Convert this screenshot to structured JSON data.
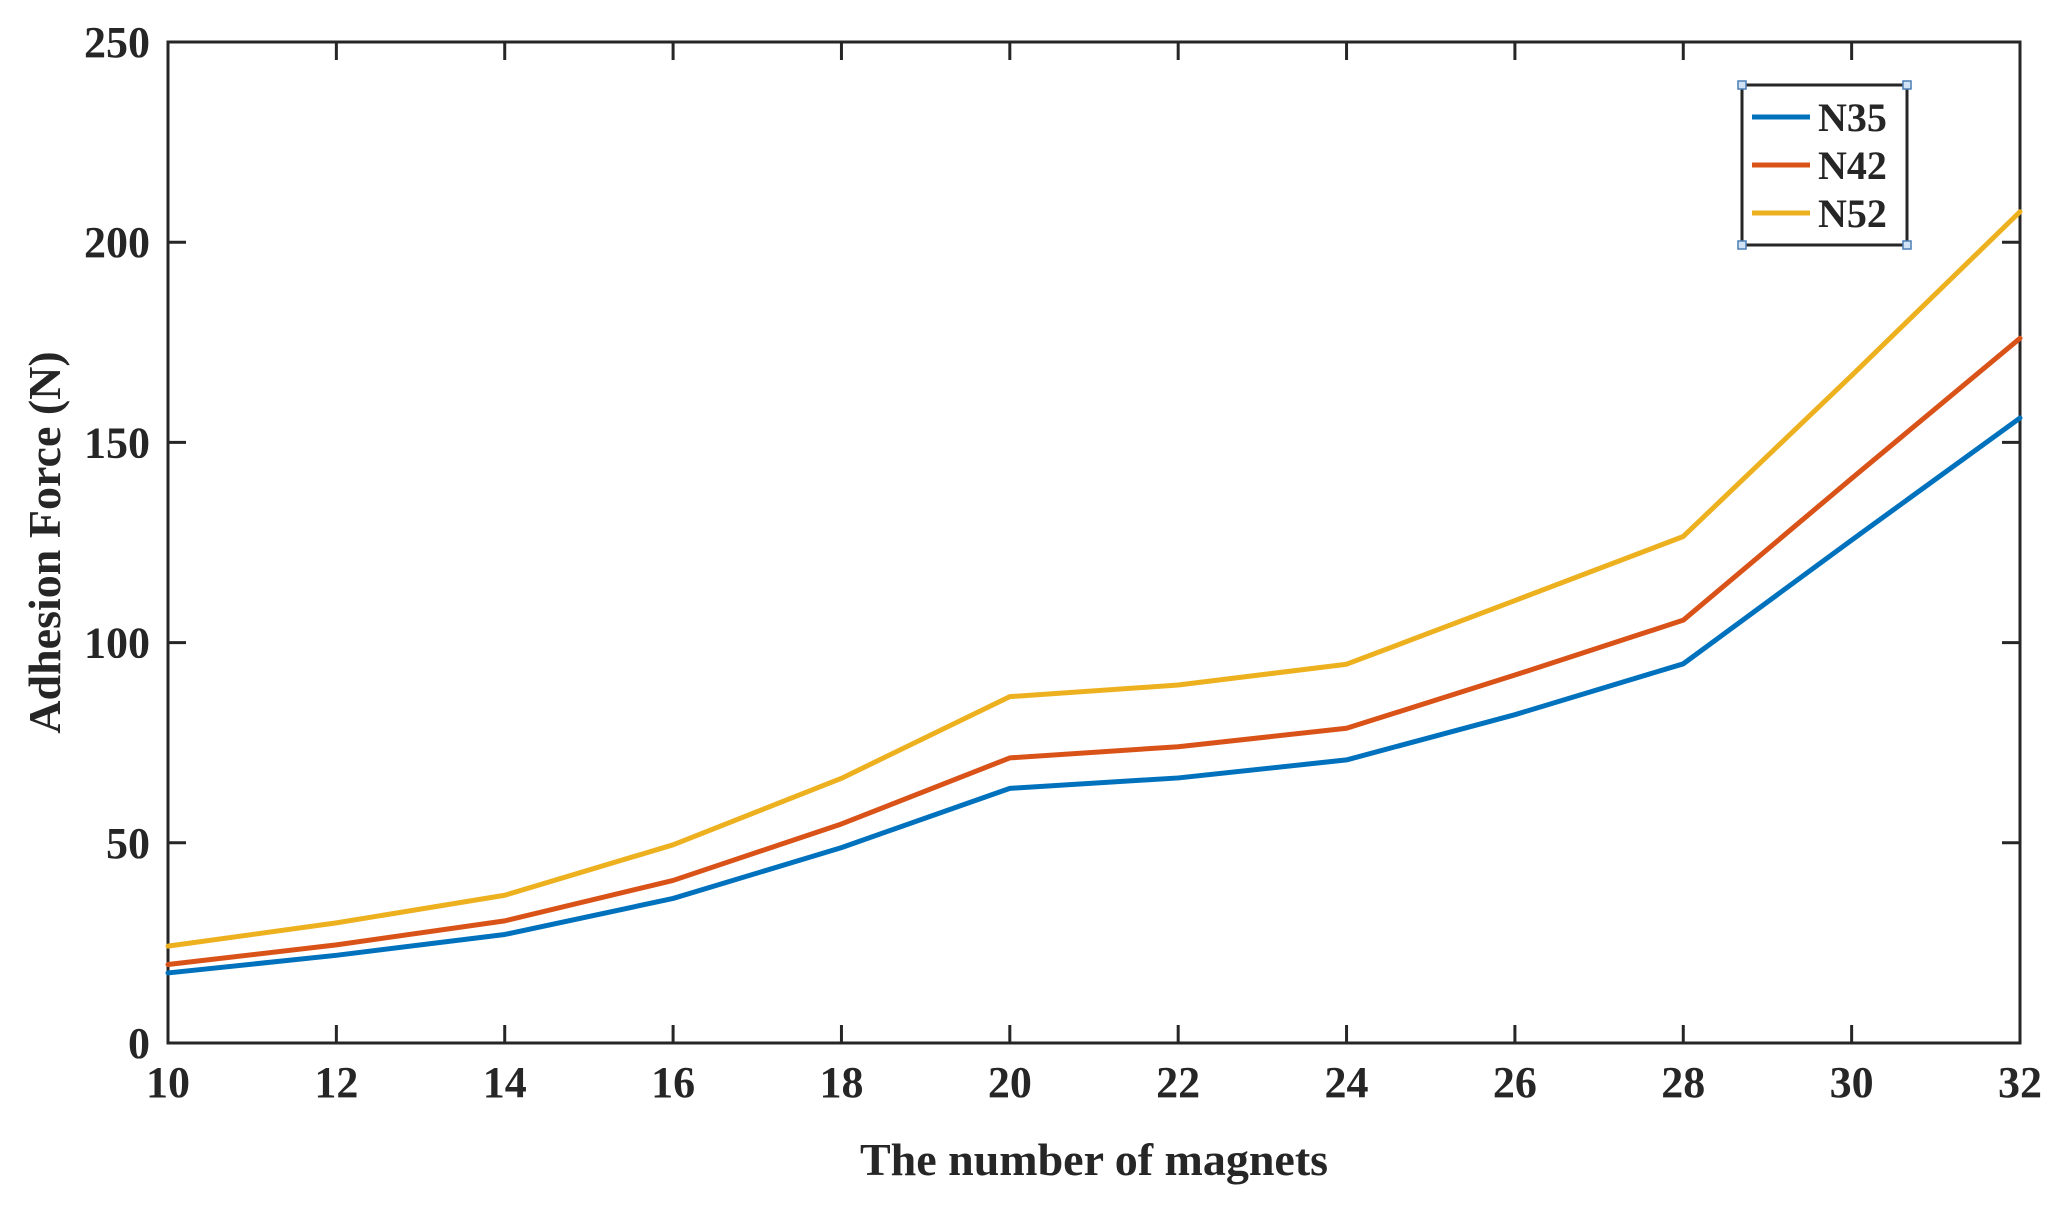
{
  "chart_data": {
    "type": "line",
    "title": "",
    "xlabel": "The number of magnets",
    "ylabel": "Adhesion Force (N)",
    "xlim": [
      10,
      32
    ],
    "ylim": [
      0,
      250
    ],
    "xticks": [
      10,
      12,
      14,
      16,
      18,
      20,
      22,
      24,
      26,
      28,
      30,
      32
    ],
    "yticks": [
      0,
      50,
      100,
      150,
      200,
      250
    ],
    "grid": false,
    "legend_position": "top-right",
    "x": [
      10,
      12,
      14,
      16,
      18,
      20,
      22,
      24,
      26,
      28,
      30,
      32
    ],
    "series": [
      {
        "name": "N35",
        "color": "#0072BD",
        "values": [
          17.5,
          21.9,
          27.1,
          36.1,
          48.8,
          63.6,
          66.2,
          70.7,
          82.0,
          94.7,
          125.6,
          156.1
        ]
      },
      {
        "name": "N42",
        "color": "#D95319",
        "values": [
          19.6,
          24.5,
          30.5,
          40.6,
          54.7,
          71.2,
          74.0,
          78.6,
          91.9,
          105.6,
          141.0,
          176.0
        ]
      },
      {
        "name": "N52",
        "color": "#EDB120",
        "values": [
          24.2,
          30.0,
          36.9,
          49.5,
          66.1,
          86.5,
          89.4,
          94.6,
          110.5,
          126.5,
          166.7,
          207.6
        ]
      }
    ]
  }
}
